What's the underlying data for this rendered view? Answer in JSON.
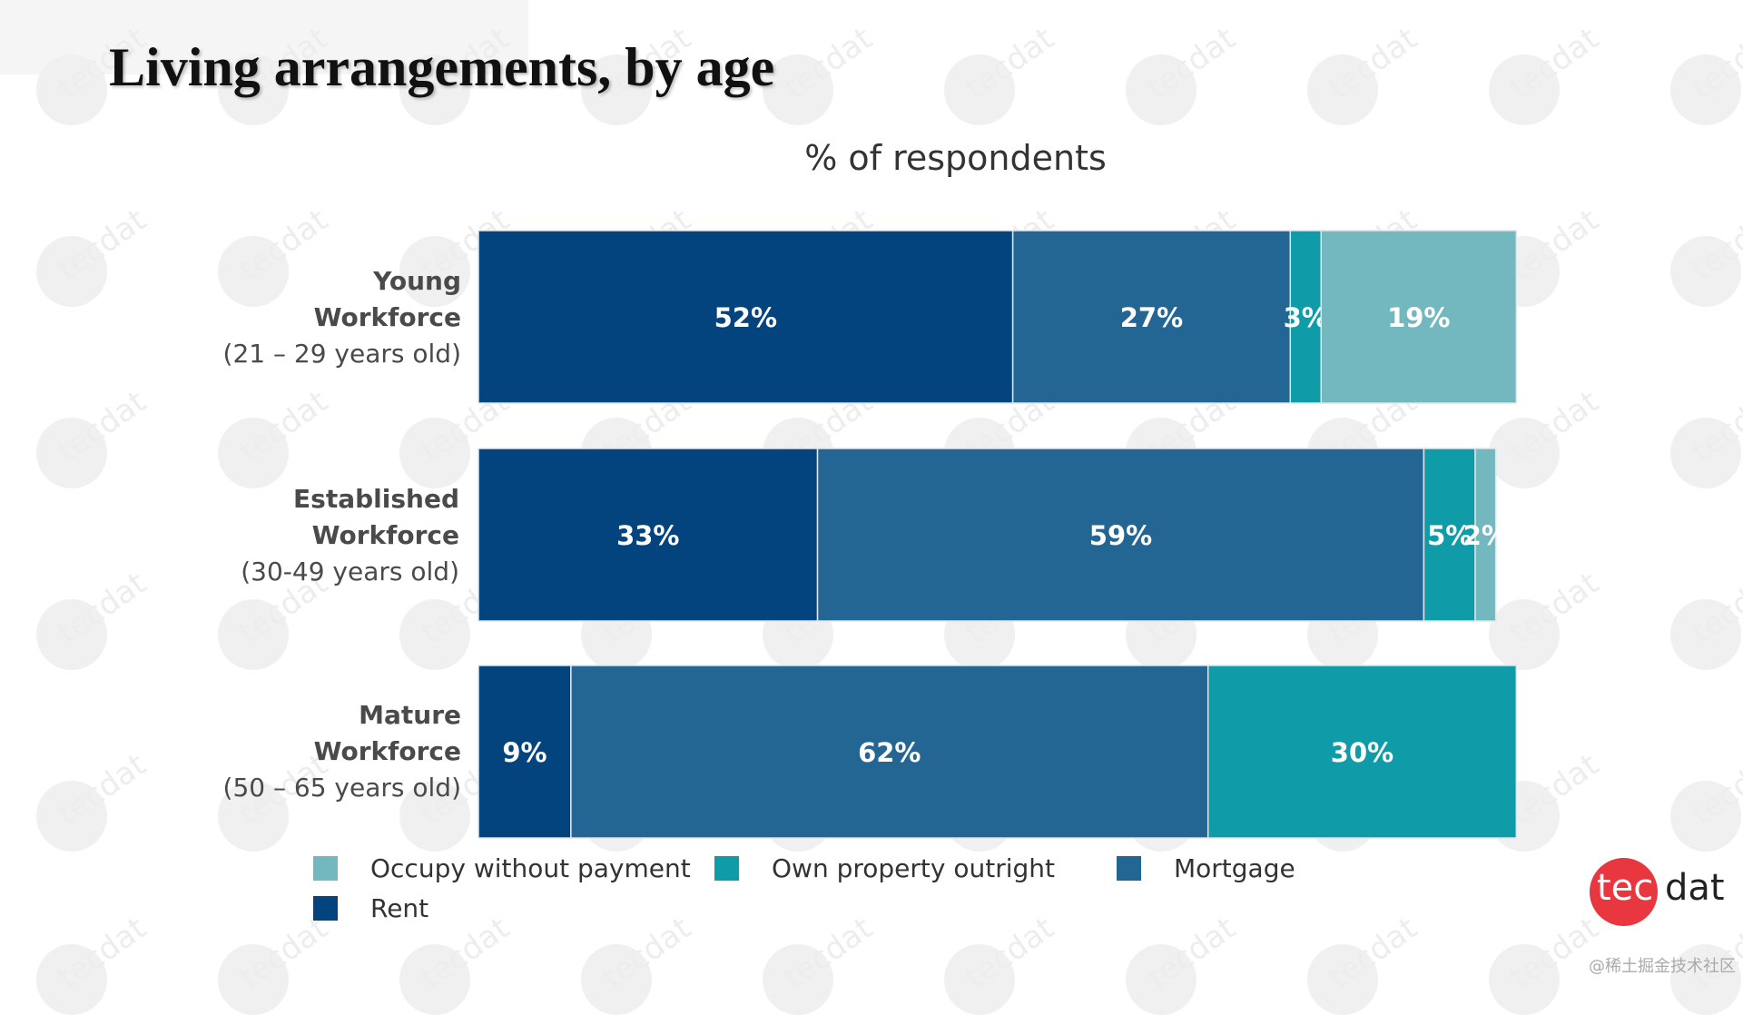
{
  "slide": {
    "title": "Living arrangements, by age",
    "watermark_text": "tecdat",
    "logo": {
      "part1": "tec",
      "part2": "dat"
    },
    "credit": "@稀土掘金技术社区"
  },
  "colors": {
    "rent": "#03447f",
    "mortgage": "#236593",
    "own_outright": "#0f9ca8",
    "occupy_free": "#74b8bf",
    "logo_red": "#e8373e"
  },
  "chart_data": {
    "type": "bar",
    "orientation": "horizontal",
    "stacked": true,
    "title": "% of respondents",
    "categories": [
      {
        "name": "Young\nWorkforce",
        "range": "(21 – 29 years old)"
      },
      {
        "name": "Established\nWorkforce",
        "range": "(30-49 years old)"
      },
      {
        "name": "Mature\nWorkforce",
        "range": "(50 – 65 years old)"
      }
    ],
    "series": [
      {
        "name": "Rent",
        "key": "rent",
        "values": [
          52,
          33,
          9
        ]
      },
      {
        "name": "Mortgage",
        "key": "mortgage",
        "values": [
          27,
          59,
          62
        ]
      },
      {
        "name": "Own property outright",
        "key": "own_outright",
        "values": [
          3,
          5,
          30
        ]
      },
      {
        "name": "Occupy without payment",
        "key": "occupy_free",
        "values": [
          19,
          2,
          0
        ]
      }
    ],
    "data_labels": [
      [
        "52%",
        "27%",
        "3%",
        "19%"
      ],
      [
        "33%",
        "59%",
        "5%",
        "2%"
      ],
      [
        "9%",
        "62%",
        "30%",
        ""
      ]
    ],
    "legend": [
      {
        "label": "Occupy without payment",
        "key": "occupy_free"
      },
      {
        "label": "Own property outright",
        "key": "own_outright"
      },
      {
        "label": "Mortgage",
        "key": "mortgage"
      },
      {
        "label": "Rent",
        "key": "rent"
      }
    ],
    "xlim": [
      0,
      100
    ]
  }
}
